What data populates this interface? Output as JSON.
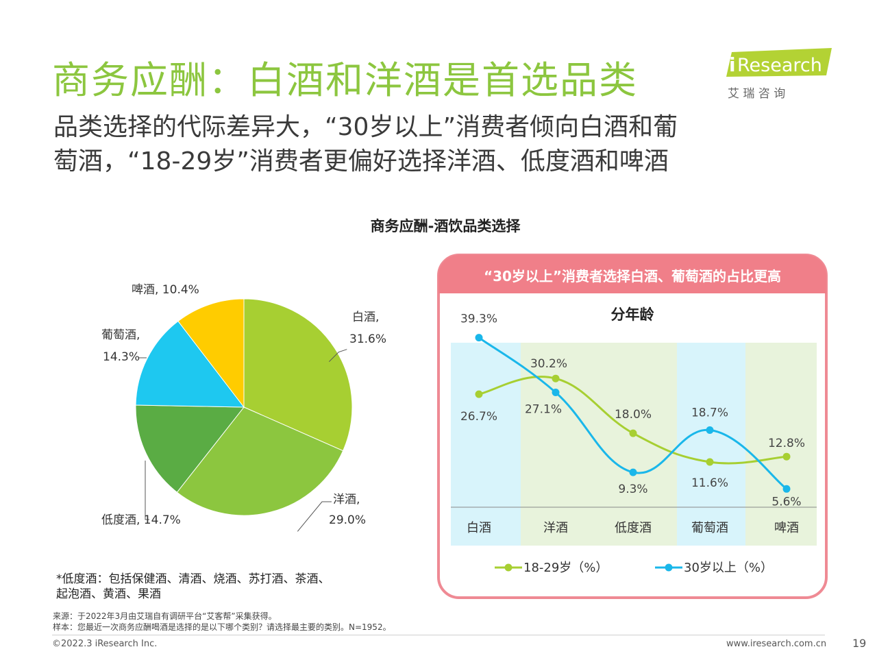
{
  "title": "商务应酬：白酒和洋酒是首选品类",
  "subtitle_line1": "品类选择的代际差异大，“30岁以上”消费者倾向白酒和葡",
  "subtitle_line2": "萄酒，“18-29岁”消费者更偏好选择洋酒、低度酒和啤酒",
  "logo": {
    "text": "Research",
    "mark": "i",
    "cn": "艾 瑞 咨 询"
  },
  "colors": {
    "title_green": "#8cc63f",
    "baijiu": "#a7cf32",
    "yangjiu": "#8cc63f",
    "didujiu": "#5aac44",
    "putaojiu": "#1ec8f0",
    "pijiu": "#ffcc00",
    "line_18_29": "#a7cf32",
    "line_30plus": "#1ab7ea",
    "panel_border": "#ef8a94"
  },
  "chart_data": [
    {
      "type": "pie",
      "title": "商务应酬-酒饮品类选择",
      "slices": [
        {
          "label": "白酒",
          "value": 31.6,
          "value_label": "31.6%"
        },
        {
          "label": "洋酒",
          "value": 29.0,
          "value_label": "29.0%"
        },
        {
          "label": "低度酒",
          "value": 14.7,
          "value_label": "14.7%"
        },
        {
          "label": "葡萄酒",
          "value": 14.3,
          "value_label": "14.3%"
        },
        {
          "label": "啤酒",
          "value": 10.4,
          "value_label": "10.4%"
        }
      ]
    },
    {
      "type": "line",
      "banner": "“30岁以上”消费者选择白酒、葡萄酒的占比更高",
      "title": "分年龄",
      "categories": [
        "白酒",
        "洋酒",
        "低度酒",
        "葡萄酒",
        "啤酒"
      ],
      "series": [
        {
          "name": "18-29岁（%）",
          "values": [
            26.7,
            30.2,
            18.0,
            11.6,
            12.8
          ]
        },
        {
          "name": "30岁以上（%）",
          "values": [
            39.3,
            27.1,
            9.3,
            18.7,
            5.6
          ]
        }
      ],
      "ylim": [
        -10,
        47
      ],
      "legend_position": "bottom"
    }
  ],
  "notes": {
    "line1": "*低度酒：包括保健酒、清酒、烧酒、苏打酒、茶酒、",
    "line2": "起泡酒、黄酒、果酒"
  },
  "source": {
    "line1": "来源：于2022年3月由艾瑞自有调研平台“艾客帮”采集获得。",
    "line2": "样本：您最近一次商务应酬喝酒是选择的是以下哪个类别？请选择最主要的类别。N=1952。"
  },
  "footer": {
    "copyright": "©2022.3 iResearch Inc.",
    "site": "www.iresearch.com.cn",
    "page": "19"
  }
}
